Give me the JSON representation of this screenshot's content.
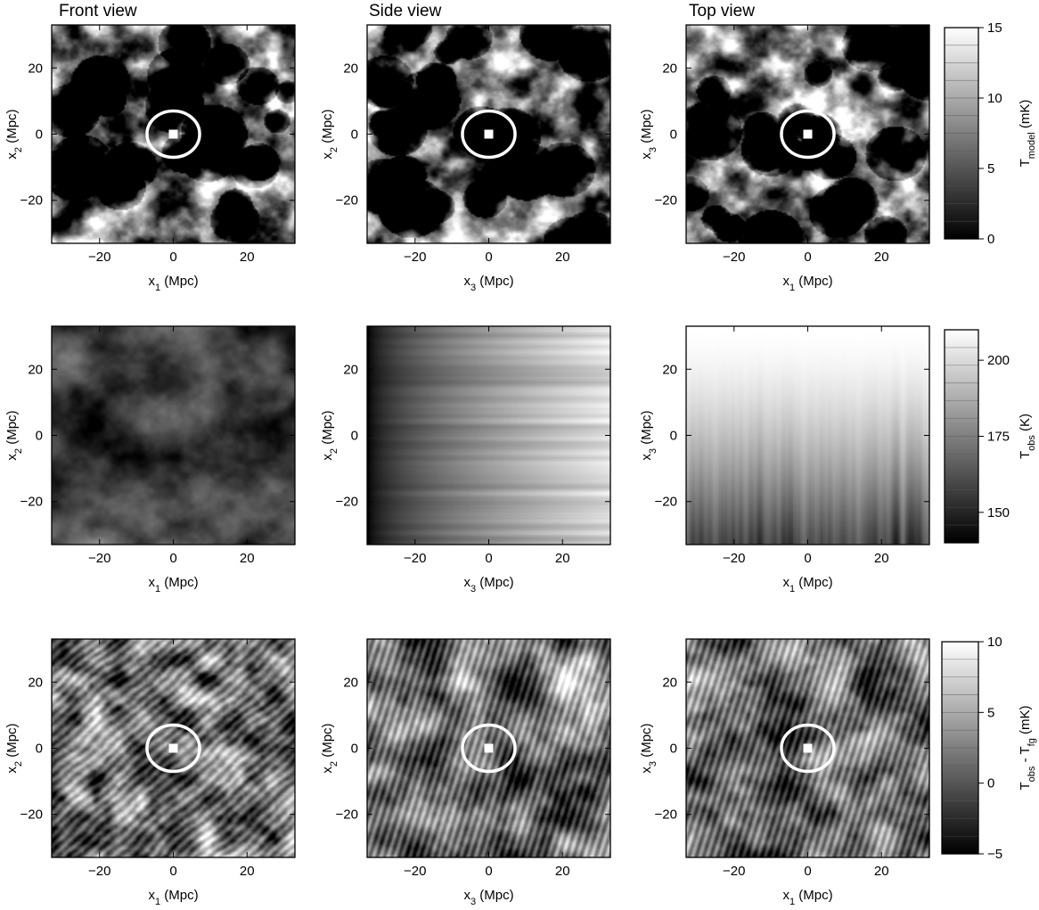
{
  "chart_data": {
    "type": "heatmap",
    "column_titles": [
      "Front view",
      "Side view",
      "Top view"
    ],
    "axis_range_mpc": [
      -33,
      33
    ],
    "axis_ticks": [
      -20,
      0,
      20
    ],
    "axis_tick_labels": [
      "−20",
      "0",
      "20"
    ],
    "rows": [
      {
        "panels": [
          {
            "xlabel": {
              "base": "x",
              "sub": "1",
              "unit": " (Mpc)"
            },
            "ylabel": {
              "base": "x",
              "sub": "2",
              "unit": " (Mpc)"
            },
            "texture": "bubbles",
            "seed": 11,
            "marker": true
          },
          {
            "xlabel": {
              "base": "x",
              "sub": "3",
              "unit": " (Mpc)"
            },
            "ylabel": {
              "base": "x",
              "sub": "2",
              "unit": " (Mpc)"
            },
            "texture": "bubbles",
            "seed": 23,
            "marker": true
          },
          {
            "xlabel": {
              "base": "x",
              "sub": "1",
              "unit": " (Mpc)"
            },
            "ylabel": {
              "base": "x",
              "sub": "3",
              "unit": " (Mpc)"
            },
            "texture": "bubbles",
            "seed": 37,
            "marker": true
          }
        ],
        "colorbar": {
          "label": {
            "base": "T",
            "sub": "model",
            "unit": "  (mK)"
          },
          "min": 0,
          "max": 15,
          "ticks": [
            0,
            5,
            10,
            15
          ],
          "tick_labels": [
            "0",
            "5",
            "10",
            "15"
          ]
        }
      },
      {
        "panels": [
          {
            "xlabel": {
              "base": "x",
              "sub": "1",
              "unit": " (Mpc)"
            },
            "ylabel": {
              "base": "x",
              "sub": "2",
              "unit": " (Mpc)"
            },
            "texture": "foreground-front",
            "seed": 5,
            "marker": false
          },
          {
            "xlabel": {
              "base": "x",
              "sub": "3",
              "unit": " (Mpc)"
            },
            "ylabel": {
              "base": "x",
              "sub": "2",
              "unit": " (Mpc)"
            },
            "texture": "foreground-side",
            "seed": 7,
            "marker": false
          },
          {
            "xlabel": {
              "base": "x",
              "sub": "1",
              "unit": " (Mpc)"
            },
            "ylabel": {
              "base": "x",
              "sub": "3",
              "unit": " (Mpc)"
            },
            "texture": "foreground-top",
            "seed": 9,
            "marker": false
          }
        ],
        "colorbar": {
          "label": {
            "base": "T",
            "sub": "obs",
            "unit": "  (K)"
          },
          "min": 140,
          "max": 210,
          "ticks": [
            150,
            175,
            200
          ],
          "tick_labels": [
            "150",
            "175",
            "200"
          ]
        }
      },
      {
        "panels": [
          {
            "xlabel": {
              "base": "x",
              "sub": "1",
              "unit": " (Mpc)"
            },
            "ylabel": {
              "base": "x",
              "sub": "2",
              "unit": " (Mpc)"
            },
            "texture": "residual",
            "seed": 13,
            "marker": true
          },
          {
            "xlabel": {
              "base": "x",
              "sub": "3",
              "unit": " (Mpc)"
            },
            "ylabel": {
              "base": "x",
              "sub": "2",
              "unit": " (Mpc)"
            },
            "texture": "residual-striped",
            "seed": 17,
            "marker": true
          },
          {
            "xlabel": {
              "base": "x",
              "sub": "1",
              "unit": " (Mpc)"
            },
            "ylabel": {
              "base": "x",
              "sub": "3",
              "unit": " (Mpc)"
            },
            "texture": "residual-striped",
            "seed": 19,
            "marker": true
          }
        ],
        "colorbar": {
          "label": {
            "base": "T",
            "sub": "obs",
            "unit": "  (mK)",
            "extra": " - T",
            "extra_sub": "fg"
          },
          "min": -5,
          "max": 10,
          "ticks": [
            -5,
            0,
            5,
            10
          ],
          "tick_labels": [
            "−5",
            "0",
            "5",
            "10"
          ]
        }
      }
    ],
    "marker_circle_radius_mpc": 7,
    "colormap": "grayscale (black low, white high)"
  }
}
